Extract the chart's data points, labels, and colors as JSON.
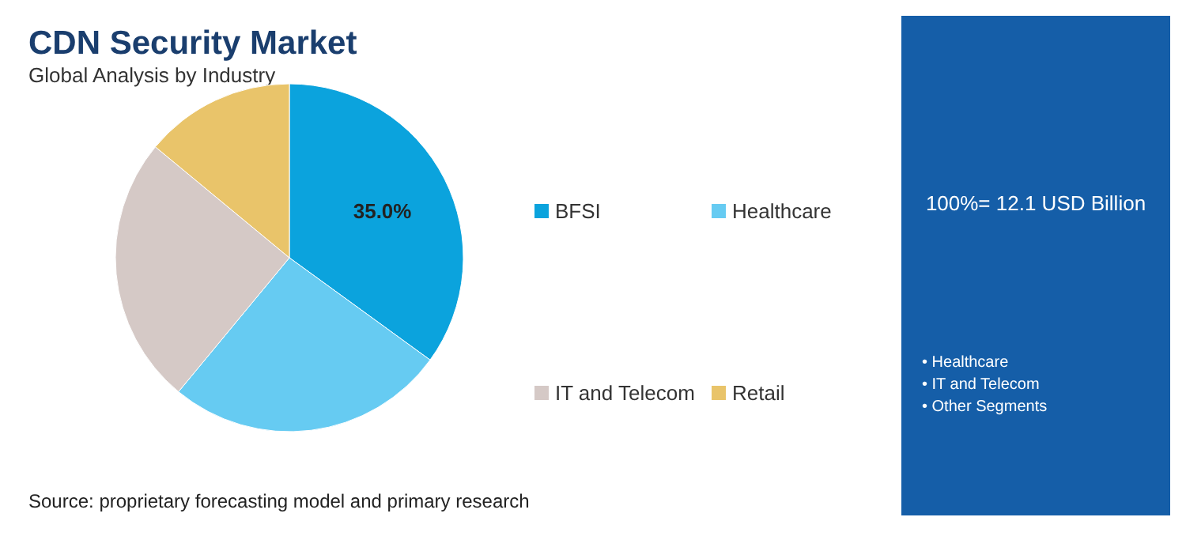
{
  "chart_data": {
    "type": "pie",
    "title": "CDN Security Market",
    "subtitle": "Global Analysis by Industry",
    "categories": [
      "BFSI",
      "Healthcare",
      "IT and Telecom",
      "Retail"
    ],
    "values": [
      35,
      26,
      25,
      14
    ],
    "colors": [
      "#0ba3dd",
      "#66cbf2",
      "#d5c9c6",
      "#e9c46a"
    ],
    "value_labels": [
      "35.0%",
      null,
      null,
      null
    ],
    "legend": "right",
    "annotations": [
      "100%= 12.1 USD Billion",
      "• Healthcare",
      "• IT and Telecom",
      "• Other Segments",
      "Source: proprietary forecasting model and primary research"
    ]
  }
}
